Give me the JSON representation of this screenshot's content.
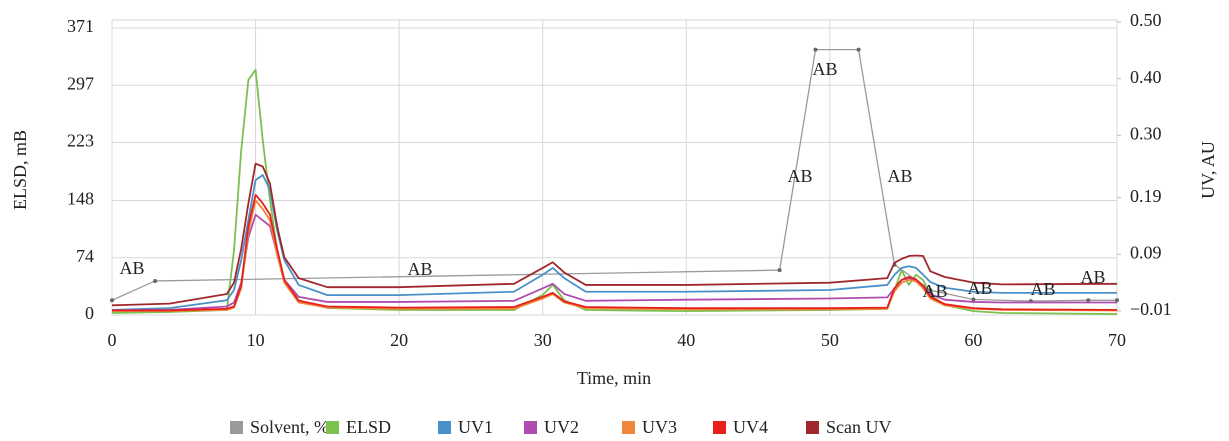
{
  "chart_data": {
    "type": "line",
    "x_label": "Time, min",
    "y_label": "ELSD, mB",
    "y2_label": "UV, AU",
    "x": [
      0,
      4,
      8,
      8.5,
      9,
      9.5,
      10,
      10.5,
      11,
      11.5,
      12,
      13,
      15,
      20,
      28,
      30,
      30.7,
      31.5,
      33,
      40,
      50,
      54,
      54.5,
      55,
      55.5,
      56,
      56.5,
      57,
      58,
      60,
      62,
      70
    ],
    "xlim": [
      0,
      70
    ],
    "xticks": [
      0,
      10,
      20,
      30,
      40,
      50,
      60,
      70
    ],
    "ylim": [
      0,
      371
    ],
    "yticks": [
      0,
      74,
      148,
      223,
      297,
      371
    ],
    "y2lim": [
      -0.01,
      0.5
    ],
    "y2ticks": [
      {
        "value": -0.01,
        "label": "−0.01"
      },
      0.09,
      0.19,
      {
        "value": 0.3,
        "label": "0.30"
      },
      {
        "value": 0.4,
        "label": "0.40"
      },
      {
        "value": 0.5,
        "label": "0.50"
      }
    ],
    "grid": true,
    "annotations": [
      "AB",
      "AB",
      "AB",
      "AB",
      "AB",
      "AB",
      "AB",
      "AB",
      "AB"
    ],
    "series": [
      {
        "name": "Solvent, %",
        "color": "#9a9a9a",
        "x": [
          0,
          3,
          46.5,
          49,
          52,
          54.5,
          57,
          60,
          64,
          68,
          70
        ],
        "values": [
          19,
          44,
          58,
          343,
          343,
          65,
          32,
          20,
          18,
          19,
          19
        ]
      },
      {
        "name": "ELSD",
        "color": "#7cc04e",
        "values": [
          2.6,
          3.9,
          6.5,
          84,
          213,
          304,
          317,
          226,
          149,
          84,
          45,
          19,
          9,
          6.5,
          6.5,
          26,
          39,
          19,
          6.5,
          5,
          6.5,
          8,
          32,
          58,
          39,
          52,
          45,
          26,
          13,
          5,
          2.6,
          1.3
        ]
      },
      {
        "name": "UV1",
        "color": "#4a90c8",
        "axis": "y2",
        "values": [
          -0.008,
          -0.005,
          0.009,
          0.027,
          0.08,
          0.151,
          0.221,
          0.23,
          0.204,
          0.133,
          0.08,
          0.036,
          0.018,
          0.018,
          0.024,
          0.054,
          0.066,
          0.048,
          0.024,
          0.024,
          0.027,
          0.036,
          0.054,
          0.066,
          0.069,
          0.066,
          0.054,
          0.041,
          0.031,
          0.024,
          0.022,
          0.022
        ]
      },
      {
        "name": "UV2",
        "color": "#b04cb0",
        "axis": "y2",
        "values": [
          -0.009,
          -0.008,
          -0.002,
          0.005,
          0.04,
          0.12,
          0.16,
          0.15,
          0.14,
          0.09,
          0.045,
          0.015,
          0.006,
          0.006,
          0.008,
          0.03,
          0.038,
          0.02,
          0.008,
          0.01,
          0.012,
          0.014,
          0.03,
          0.045,
          0.048,
          0.045,
          0.035,
          0.02,
          0.01,
          0.006,
          0.005,
          0.005
        ]
      },
      {
        "name": "UV3",
        "color": "#f0883c",
        "axis": "y2",
        "values": [
          -0.01,
          -0.01,
          -0.008,
          -0.004,
          0.03,
          0.13,
          0.185,
          0.17,
          0.15,
          0.09,
          0.04,
          0.005,
          -0.004,
          -0.006,
          -0.006,
          0.012,
          0.02,
          0.005,
          -0.005,
          -0.007,
          -0.007,
          -0.006,
          0.025,
          0.04,
          0.045,
          0.042,
          0.03,
          0.012,
          0,
          -0.006,
          -0.008,
          -0.009
        ]
      },
      {
        "name": "UV4",
        "color": "#e8201c",
        "axis": "y2",
        "values": [
          -0.009,
          -0.009,
          -0.006,
          -0.002,
          0.035,
          0.14,
          0.195,
          0.18,
          0.16,
          0.1,
          0.045,
          0.008,
          -0.002,
          -0.004,
          -0.003,
          0.015,
          0.022,
          0.007,
          -0.003,
          -0.005,
          -0.005,
          -0.004,
          0.03,
          0.045,
          0.05,
          0.046,
          0.034,
          0.015,
          0.002,
          -0.005,
          -0.007,
          -0.008
        ]
      },
      {
        "name": "Scan UV",
        "color": "#a0282c",
        "axis": "y2",
        "values": [
          0,
          0.003,
          0.02,
          0.04,
          0.1,
          0.18,
          0.25,
          0.245,
          0.215,
          0.14,
          0.085,
          0.048,
          0.032,
          0.032,
          0.038,
          0.066,
          0.076,
          0.058,
          0.036,
          0.036,
          0.04,
          0.048,
          0.075,
          0.082,
          0.087,
          0.088,
          0.087,
          0.06,
          0.05,
          0.04,
          0.037,
          0.038
        ]
      }
    ]
  }
}
